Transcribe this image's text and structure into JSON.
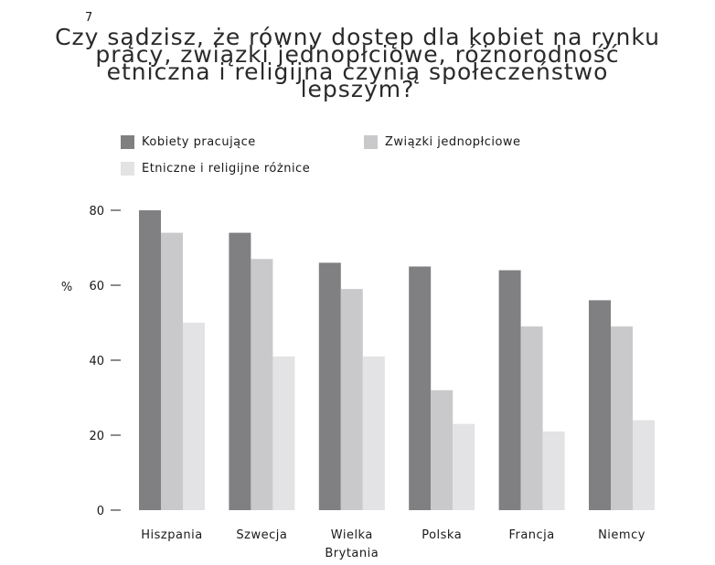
{
  "figure_number": "7",
  "chart_data": {
    "type": "bar",
    "title_lines": [
      "Czy sądzisz, że równy dostęp dla kobiet na rynku",
      "pracy, związki jednopłciowe, różnorodność",
      "etniczna i religijna czynią społeczeństwo",
      "lepszym?"
    ],
    "ylabel": "%",
    "ylim": [
      0,
      80
    ],
    "yticks": [
      0,
      20,
      40,
      60,
      80
    ],
    "grid": false,
    "legend_position": "top",
    "categories": [
      [
        "Hiszpania"
      ],
      [
        "Szwecja"
      ],
      [
        "Wielka",
        "Brytania"
      ],
      [
        "Polska"
      ],
      [
        "Francja"
      ],
      [
        "Niemcy"
      ]
    ],
    "series": [
      {
        "name": "Kobiety pracujące",
        "color": "#808083",
        "values": [
          80,
          74,
          66,
          65,
          64,
          56
        ]
      },
      {
        "name": "Związki jednopłciowe",
        "color": "#c9c9cb",
        "values": [
          74,
          67,
          59,
          32,
          49,
          49
        ]
      },
      {
        "name": "Etniczne i religijne różnice",
        "color": "#e3e3e5",
        "values": [
          50,
          41,
          41,
          23,
          21,
          24
        ]
      }
    ]
  }
}
